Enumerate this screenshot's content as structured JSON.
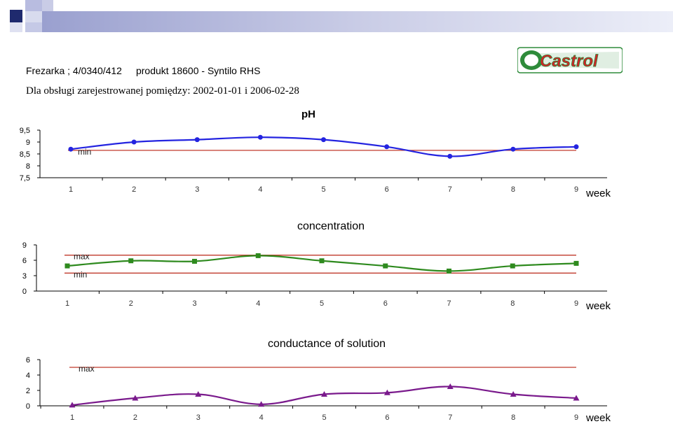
{
  "header": {
    "machine": "Frezarka ; 4/0340/412",
    "product": "produkt  18600 - Syntilo RHS",
    "period": "Dla obsługi zarejestrowanej pomiędzy: 2002-01-01 i 2006-02-28",
    "logo_text": "Castrol",
    "colors": {
      "logo_green": "#2e8b3a",
      "logo_red": "#d42027",
      "band_dark": "#1f2a6e",
      "band_light": "#c8cbe6"
    }
  },
  "chart_data": [
    {
      "type": "line",
      "title": "pH",
      "xlabel": "week",
      "x": [
        1,
        2,
        3,
        4,
        5,
        6,
        7,
        8,
        9
      ],
      "yticks": [
        "7,5",
        "8",
        "8,5",
        "9",
        "9,5"
      ],
      "ylim": [
        7.5,
        9.5
      ],
      "series": [
        {
          "values": [
            8.7,
            9.0,
            9.1,
            9.2,
            9.1,
            8.8,
            8.4,
            8.7,
            8.8
          ],
          "color": "#2424e0",
          "marker": "circle"
        }
      ],
      "limits": [
        {
          "label": "min",
          "value": 8.65,
          "color": "#c0392b"
        }
      ],
      "grid": false
    },
    {
      "type": "line",
      "title": "concentration",
      "xlabel": "week",
      "x": [
        1,
        2,
        3,
        4,
        5,
        6,
        7,
        8,
        9
      ],
      "yticks": [
        "0",
        "3",
        "6",
        "9"
      ],
      "ylim": [
        0,
        9
      ],
      "series": [
        {
          "values": [
            4.9,
            5.9,
            5.8,
            6.9,
            5.9,
            4.9,
            3.9,
            4.9,
            5.4
          ],
          "color": "#2e8a1e",
          "marker": "square"
        }
      ],
      "limits": [
        {
          "label": "max",
          "value": 7,
          "color": "#c0392b"
        },
        {
          "label": "min",
          "value": 3.5,
          "color": "#c0392b"
        }
      ],
      "grid": false
    },
    {
      "type": "line",
      "title": "conductance of solution",
      "xlabel": "week",
      "x": [
        1,
        2,
        3,
        4,
        5,
        6,
        7,
        8,
        9
      ],
      "yticks": [
        "0",
        "2",
        "4",
        "6"
      ],
      "ylim": [
        0,
        6
      ],
      "series": [
        {
          "values": [
            0.1,
            1.0,
            1.5,
            0.2,
            1.5,
            1.7,
            2.5,
            1.5,
            1.0
          ],
          "color": "#7a1a8c",
          "marker": "triangle"
        }
      ],
      "limits": [
        {
          "label": "max",
          "value": 5,
          "color": "#c0392b"
        }
      ],
      "grid": false
    }
  ]
}
